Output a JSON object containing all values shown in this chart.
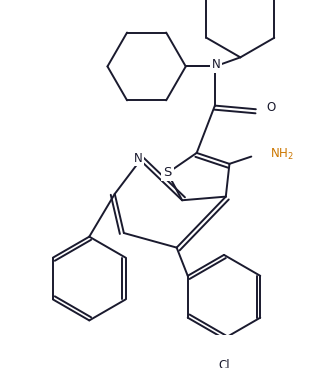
{
  "bg_color": "#ffffff",
  "line_color": "#1a1a2e",
  "line_width": 1.4,
  "font_size": 8.5,
  "figsize": [
    3.26,
    3.68
  ],
  "dpi": 100,
  "xlim": [
    0,
    326
  ],
  "ylim": [
    0,
    368
  ]
}
